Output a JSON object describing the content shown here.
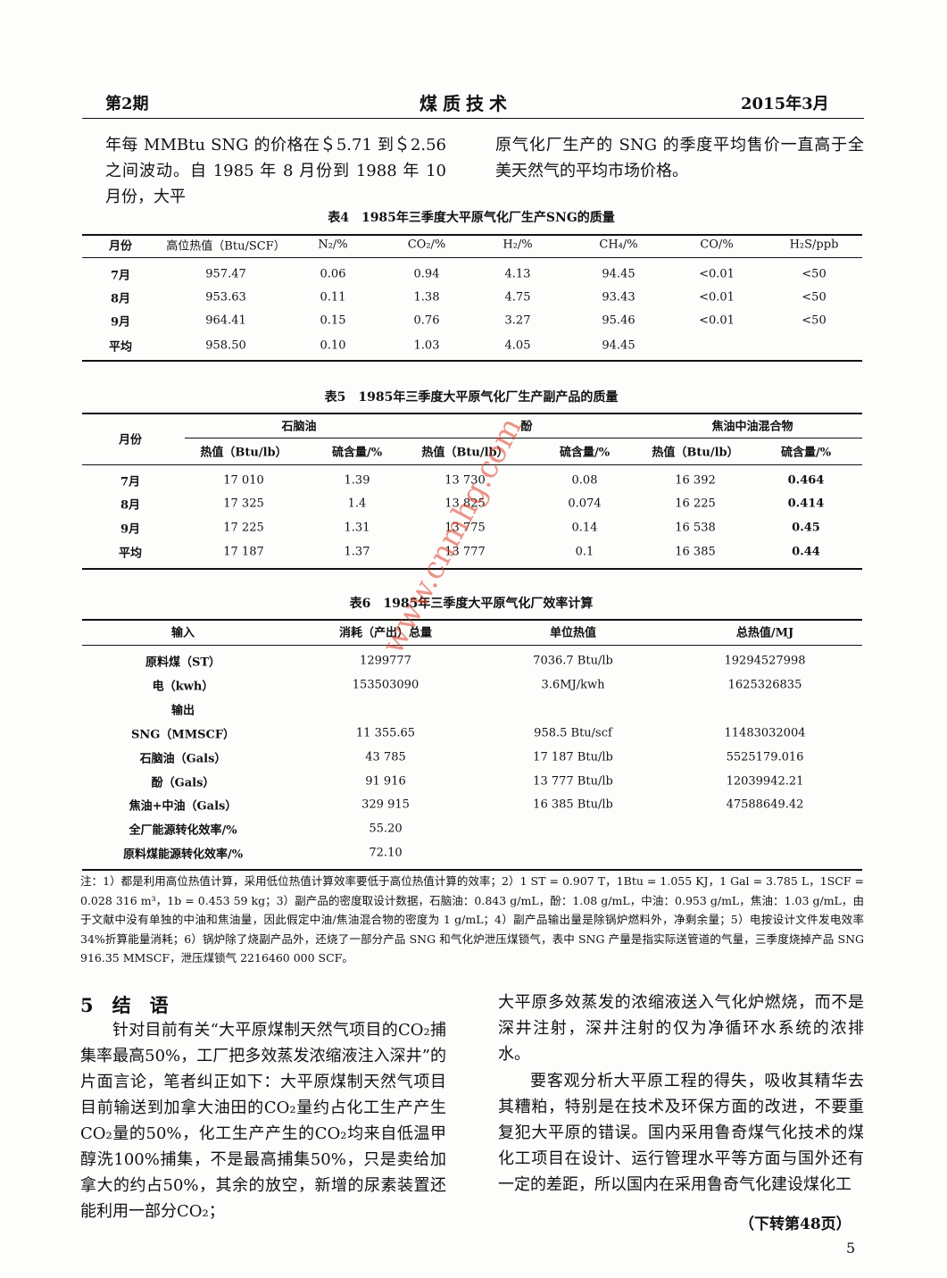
{
  "header": {
    "issue": "第2期",
    "journal": "煤质技术",
    "date": "2015年3月"
  },
  "intro": {
    "left": "年每 MMBtu SNG 的价格在＄5.71 到＄2.56 之间波动。自 1985 年 8 月份到 1988 年 10 月份，大平",
    "right": "原气化厂生产的 SNG 的季度平均售价一直高于全美天然气的平均市场价格。"
  },
  "table4": {
    "title": "表4　1985年三季度大平原气化厂生产SNG的质量",
    "headers": [
      "月份",
      "高位热值（Btu/SCF）",
      "N₂/%",
      "CO₂/%",
      "H₂/%",
      "CH₄/%",
      "CO/%",
      "H₂S/ppb"
    ],
    "rows": [
      [
        "7月",
        "957.47",
        "0.06",
        "0.94",
        "4.13",
        "94.45",
        "<0.01",
        "<50"
      ],
      [
        "8月",
        "953.63",
        "0.11",
        "1.38",
        "4.75",
        "93.43",
        "<0.01",
        "<50"
      ],
      [
        "9月",
        "964.41",
        "0.15",
        "0.76",
        "3.27",
        "95.46",
        "<0.01",
        "<50"
      ],
      [
        "平均",
        "958.50",
        "0.10",
        "1.03",
        "4.05",
        "94.45"
      ]
    ]
  },
  "table5": {
    "title": "表5　1985年三季度大平原气化厂生产副产品的质量",
    "row_header": "月份",
    "groups": [
      "石脑油",
      "酚",
      "焦油中油混合物"
    ],
    "subheaders": [
      "热值（Btu/lb）",
      "硫含量/%",
      "热值（Btu/lb）",
      "硫含量/%",
      "热值（Btu/lb）",
      "硫含量/%"
    ],
    "rows": [
      [
        "7月",
        "17 010",
        "1.39",
        "13 730",
        "0.08",
        "16 392",
        "0.464"
      ],
      [
        "8月",
        "17 325",
        "1.4",
        "13 825",
        "0.074",
        "16 225",
        "0.414"
      ],
      [
        "9月",
        "17 225",
        "1.31",
        "13 775",
        "0.14",
        "16 538",
        "0.45"
      ],
      [
        "平均",
        "17 187",
        "1.37",
        "13 777",
        "0.1",
        "16 385",
        "0.44"
      ]
    ]
  },
  "table6": {
    "title": "表6　1985年三季度大平原气化厂效率计算",
    "headers": [
      "输入",
      "消耗（产出）总量",
      "单位热值",
      "总热值/MJ"
    ],
    "rows": [
      [
        "原料煤（ST）",
        "1299777",
        "7036.7 Btu/lb",
        "19294527998"
      ],
      [
        "电（kwh）",
        "153503090",
        "3.6MJ/kwh",
        "1625326835"
      ],
      [
        "输出"
      ],
      [
        "SNG（MMSCF）",
        "11 355.65",
        "958.5 Btu/scf",
        "11483032004"
      ],
      [
        "石脑油（Gals）",
        "43 785",
        "17 187 Btu/lb",
        "5525179.016"
      ],
      [
        "酚（Gals）",
        "91 916",
        "13 777 Btu/lb",
        "12039942.21"
      ],
      [
        "焦油+中油（Gals）",
        "329 915",
        "16 385 Btu/lb",
        "47588649.42"
      ],
      [
        "全厂能源转化效率/%",
        "55.20"
      ],
      [
        "原料煤能源转化效率/%",
        "72.10"
      ]
    ]
  },
  "note": "注：1）都是利用高位热值计算，采用低位热值计算效率要低于高位热值计算的效率；2）1 ST = 0.907 T，1Btu = 1.055 KJ，1 Gal = 3.785 L，1SCF = 0.028 316 m³，1b = 0.453 59 kg；3）副产品的密度取设计数据，石脑油：0.843 g/mL，酚：1.08 g/mL，中油：0.953 g/mL，焦油：1.03 g/mL，由于文献中没有单独的中油和焦油量，因此假定中油/焦油混合物的密度为 1 g/mL；4）副产品输出量是除锅炉燃料外，净剩余量；5）电按设计文件发电效率34%折算能量消耗；6）锅炉除了烧副产品外，还烧了一部分产品 SNG 和气化炉泄压煤锁气，表中 SNG 产量是指实际送管道的气量，三季度烧掉产品 SNG 916.35 MMSCF，泄压煤锁气 2216460 000 SCF。",
  "section": {
    "heading": "5　结　语",
    "left_paragraph": "针对目前有关“大平原煤制天然气项目的CO₂捕集率最高50%，工厂把多效蒸发浓缩液注入深井”的片面言论，笔者纠正如下：大平原煤制天然气项目目前输送到加拿大油田的CO₂量约占化工生产产生CO₂量的50%，化工生产产生的CO₂均来自低温甲醇洗100%捕集，不是最高捕集50%，只是卖给加拿大的约占50%，其余的放空，新增的尿素装置还能利用一部分CO₂；",
    "right_paragraphs": [
      "大平原多效蒸发的浓缩液送入气化炉燃烧，而不是深井注射，深井注射的仅为净循环水系统的浓排水。",
      "要客观分析大平原工程的得失，吸收其精华去其糟粕，特别是在技术及环保方面的改进，不要重复犯大平原的错误。国内采用鲁奇煤气化技术的煤化工项目在设计、运行管理水平等方面与国外还有一定的差距，所以国内在采用鲁奇气化建设煤化工"
    ],
    "continued": "（下转第48页）"
  },
  "page_number": "5",
  "watermark": "www.cnmhg.com"
}
